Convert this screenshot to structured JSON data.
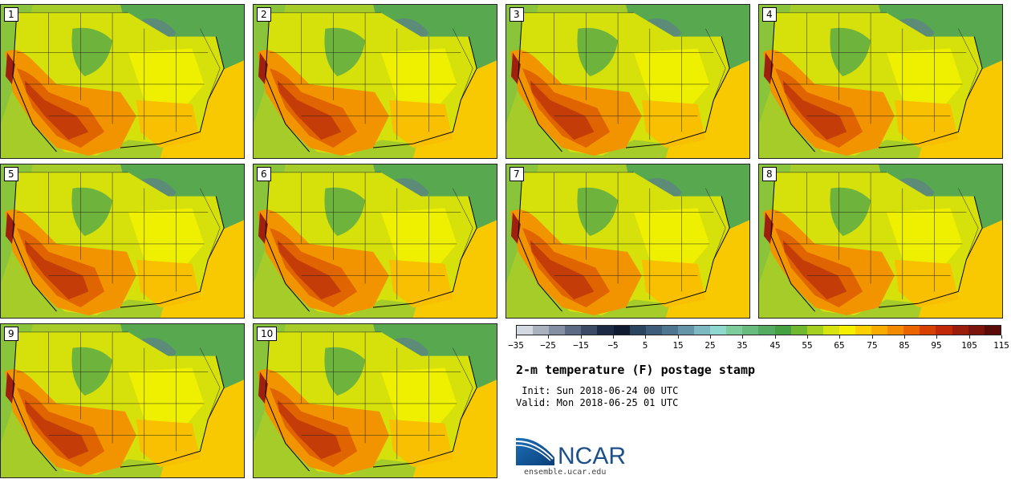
{
  "title": "2-m temperature (F) postage stamp",
  "init": " Init: Sun 2018-06-24 00 UTC",
  "valid": "Valid: Mon 2018-06-25 01 UTC",
  "panels": [
    "1",
    "2",
    "3",
    "4",
    "5",
    "6",
    "7",
    "8",
    "9",
    "10"
  ],
  "colorbar": {
    "tick_labels": [
      "−35",
      "−25",
      "−15",
      "−5",
      "5",
      "15",
      "25",
      "35",
      "45",
      "55",
      "65",
      "75",
      "85",
      "95",
      "105",
      "115"
    ],
    "colors": [
      "#d4d8e0",
      "#aab2c0",
      "#848fa4",
      "#5d6a84",
      "#3c4a66",
      "#1d2a44",
      "#0f1b30",
      "#2a4560",
      "#3d5d78",
      "#4e7690",
      "#6494a8",
      "#7eb8c0",
      "#8ed8d0",
      "#7ecc9c",
      "#68bc7e",
      "#54ac60",
      "#44a040",
      "#70b830",
      "#a6d020",
      "#d8e410",
      "#f4f000",
      "#fad000",
      "#f8ac00",
      "#f48a00",
      "#ec6400",
      "#d84000",
      "#c02808",
      "#9c1c0c",
      "#7a140c",
      "#5a0c08"
    ]
  },
  "logo": {
    "text": "NCAR",
    "subtitle": "ensemble.ucar.edu"
  }
}
